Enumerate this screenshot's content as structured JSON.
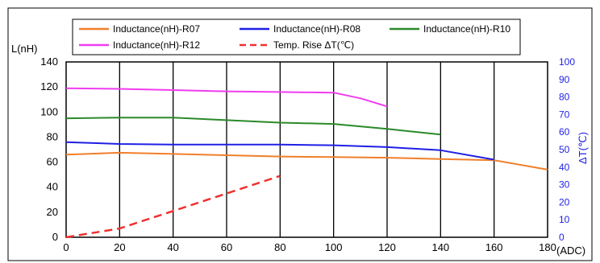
{
  "chart_data": {
    "type": "line",
    "xlabel": "(ADC)",
    "ylabel": "L(nH)",
    "y2label": "ΔT(℃)",
    "xlim": [
      0,
      180
    ],
    "ylim": [
      0,
      140
    ],
    "y2lim": [
      0,
      100
    ],
    "xticks": [
      0,
      20,
      40,
      60,
      80,
      100,
      120,
      140,
      160,
      180
    ],
    "yticks": [
      0,
      20,
      40,
      60,
      80,
      100,
      120,
      140
    ],
    "y2ticks": [
      0,
      10,
      20,
      30,
      40,
      50,
      60,
      70,
      80,
      90,
      100
    ],
    "grid": "vertical",
    "legend_position": "top",
    "series": [
      {
        "name": "Inductance(nH)-R07",
        "color": "#F07F2A",
        "style": "solid",
        "axis": "left",
        "x": [
          0,
          20,
          40,
          60,
          80,
          100,
          120,
          140,
          160,
          180
        ],
        "y": [
          66,
          67.5,
          66.5,
          65.5,
          64.5,
          64,
          63.5,
          62.5,
          61.5,
          54
        ]
      },
      {
        "name": "Inductance(nH)-R08",
        "color": "#1F1FE6",
        "style": "solid",
        "axis": "left",
        "x": [
          0,
          20,
          40,
          60,
          80,
          100,
          120,
          140,
          160
        ],
        "y": [
          76,
          74.5,
          74,
          74,
          74,
          73.5,
          72,
          69.5,
          62
        ]
      },
      {
        "name": "Inductance(nH)-R10",
        "color": "#2A8A2A",
        "style": "solid",
        "axis": "left",
        "x": [
          0,
          20,
          40,
          60,
          80,
          100,
          120,
          140
        ],
        "y": [
          95,
          95.5,
          95.5,
          93.5,
          91.5,
          90.5,
          86.5,
          82
        ]
      },
      {
        "name": "Inductance(nH)-R12",
        "color": "#F03CF0",
        "style": "solid",
        "axis": "left",
        "x": [
          0,
          20,
          40,
          60,
          80,
          100,
          110,
          120
        ],
        "y": [
          119,
          118.5,
          117.5,
          116.5,
          116,
          115.5,
          111,
          104.5
        ]
      },
      {
        "name": "Temp. Rise ΔT(℃)",
        "color": "#F03030",
        "style": "dashed",
        "axis": "right",
        "x": [
          0,
          20,
          40,
          60,
          80
        ],
        "y": [
          0,
          5,
          15,
          25,
          35
        ]
      }
    ]
  }
}
